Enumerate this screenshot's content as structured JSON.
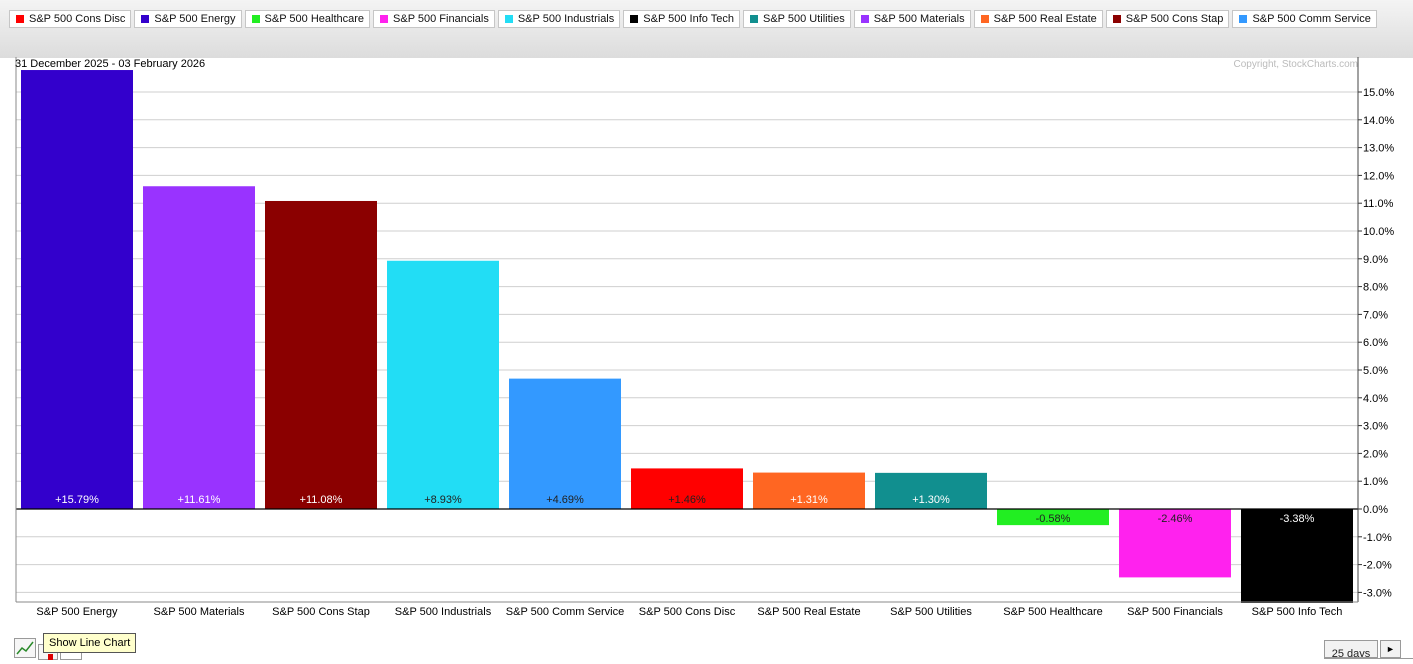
{
  "legend": [
    {
      "label": "S&P 500 Cons Disc",
      "color": "#ff0000"
    },
    {
      "label": "S&P 500 Energy",
      "color": "#3300cc"
    },
    {
      "label": "S&P 500 Healthcare",
      "color": "#22ee22"
    },
    {
      "label": "S&P 500 Financials",
      "color": "#ff22ee"
    },
    {
      "label": "S&P 500 Industrials",
      "color": "#22ddf5"
    },
    {
      "label": "S&P 500 Info Tech",
      "color": "#000000"
    },
    {
      "label": "S&P 500 Utilities",
      "color": "#118f8f"
    },
    {
      "label": "S&P 500 Materials",
      "color": "#9933ff"
    },
    {
      "label": "S&P 500 Real Estate",
      "color": "#ff6622"
    },
    {
      "label": "S&P 500 Cons Stap",
      "color": "#8b0000"
    },
    {
      "label": "S&P 500 Comm Service",
      "color": "#3399ff"
    }
  ],
  "chart_data": {
    "type": "bar",
    "date_range": "31 December 2025 - 03 February 2026",
    "copyright": "Copyright, StockCharts.com",
    "categories": [
      "S&P 500 Energy",
      "S&P 500 Materials",
      "S&P 500 Cons Stap",
      "S&P 500 Industrials",
      "S&P 500 Comm Service",
      "S&P 500 Cons Disc",
      "S&P 500 Real Estate",
      "S&P 500 Utilities",
      "S&P 500 Healthcare",
      "S&P 500 Financials",
      "S&P 500 Info Tech"
    ],
    "values": [
      15.79,
      11.61,
      11.08,
      8.93,
      4.69,
      1.46,
      1.31,
      1.3,
      -0.58,
      -2.46,
      -3.38
    ],
    "value_labels": [
      "+15.79%",
      "+11.61%",
      "+11.08%",
      "+8.93%",
      "+4.69%",
      "+1.46%",
      "+1.31%",
      "+1.30%",
      "-0.58%",
      "-2.46%",
      "-3.38%"
    ],
    "colors": [
      "#3300cc",
      "#9933ff",
      "#8b0000",
      "#22ddf5",
      "#3399ff",
      "#ff0000",
      "#ff6622",
      "#118f8f",
      "#22ee22",
      "#ff22ee",
      "#000000"
    ],
    "yticks": [
      15,
      14,
      13,
      12,
      11,
      10,
      9,
      8,
      7,
      6,
      5,
      4,
      3,
      2,
      1,
      0,
      -1,
      -2,
      -3
    ],
    "ytick_labels": [
      "15.0%",
      "14.0%",
      "13.0%",
      "12.0%",
      "11.0%",
      "10.0%",
      "9.0%",
      "8.0%",
      "7.0%",
      "6.0%",
      "5.0%",
      "4.0%",
      "3.0%",
      "2.0%",
      "1.0%",
      "0.0%",
      "-1.0%",
      "-2.0%",
      "-3.0%"
    ],
    "ylim": [
      -3.4,
      15.8
    ],
    "grid": true,
    "y_axis_side": "right"
  },
  "controls": {
    "tooltip": "Show Line Chart",
    "period": "25 days",
    "next_icon": "►"
  }
}
